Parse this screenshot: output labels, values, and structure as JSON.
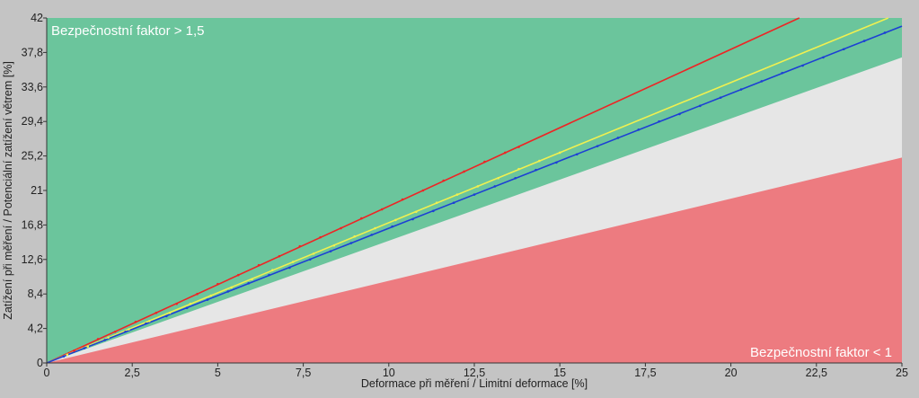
{
  "chart_data": {
    "type": "scatter",
    "title": "",
    "xlabel": "Deformace při měření / Limitní deformace [%]",
    "ylabel": "Zatížení při měření / Potenciální zatížení větrem [%]",
    "xlim": [
      0,
      25
    ],
    "ylim": [
      0,
      42
    ],
    "x_ticks": [
      "0",
      "2,5",
      "5",
      "7,5",
      "10",
      "12,5",
      "15",
      "17,5",
      "20",
      "22,5",
      "25"
    ],
    "y_ticks": [
      "0",
      "4,2",
      "8,4",
      "12,6",
      "16,8",
      "21",
      "25,2",
      "29,4",
      "33,6",
      "37,8",
      "42"
    ],
    "grid": false,
    "annotations": {
      "safe": "Bezpečnostní faktor > 1,5",
      "unsafe": "Bezpečnostní faktor < 1"
    },
    "zones": [
      {
        "id": "safe",
        "color": "#6bc59c",
        "upper_boundary_slope": null,
        "lower_boundary_slope": 1.5
      },
      {
        "id": "middle",
        "color": "#e6e6e6",
        "upper_boundary_slope": 1.5,
        "lower_boundary_slope": 1.0
      },
      {
        "id": "unsafe",
        "color": "#ed7b80",
        "upper_boundary_slope": 1.0,
        "lower_boundary_slope": 0
      }
    ],
    "series": [
      {
        "color": "#ee2424",
        "line": {
          "x": [
            0,
            22
          ],
          "y": [
            0,
            42
          ]
        },
        "points": {
          "x": [
            0.8,
            1.5,
            2.0,
            2.6,
            3.2,
            3.8,
            4.4,
            5.0,
            5.6,
            6.2,
            6.8,
            7.4,
            8.0,
            8.6,
            9.2,
            9.8,
            10.4,
            11.0,
            11.6,
            12.2,
            12.8,
            13.4,
            13.8
          ],
          "y": [
            1.5,
            2.9,
            3.8,
            5.0,
            6.1,
            7.2,
            8.4,
            9.6,
            10.7,
            11.9,
            13.0,
            14.2,
            15.3,
            16.4,
            17.6,
            18.7,
            19.9,
            21.0,
            22.2,
            23.3,
            24.5,
            25.6,
            26.3
          ]
        }
      },
      {
        "color": "#f0f050",
        "line": {
          "x": [
            0,
            24.6
          ],
          "y": [
            0,
            42
          ]
        },
        "points": {
          "x": [
            0.6,
            1.2,
            1.8,
            2.4,
            3.0,
            3.6,
            4.2,
            4.8,
            5.4,
            6.0,
            6.6,
            7.2,
            7.8,
            8.4,
            9.0,
            9.6,
            10.2,
            10.8,
            11.4,
            12.0,
            12.6,
            13.2,
            13.8,
            14.4,
            15.0
          ],
          "y": [
            1.0,
            2.0,
            3.1,
            4.1,
            5.1,
            6.1,
            7.2,
            8.2,
            9.2,
            10.2,
            11.3,
            12.3,
            13.3,
            14.3,
            15.4,
            16.4,
            17.4,
            18.4,
            19.5,
            20.5,
            21.5,
            22.5,
            23.6,
            24.6,
            25.6
          ]
        }
      },
      {
        "color": "#1c3fd4",
        "line": {
          "x": [
            0,
            25
          ],
          "y": [
            0,
            41
          ]
        },
        "points": {
          "x": [
            0.5,
            1.1,
            1.7,
            2.3,
            2.9,
            3.5,
            4.1,
            4.7,
            5.3,
            5.9,
            6.5,
            7.1,
            7.7,
            8.3,
            8.9,
            9.5,
            10.1,
            10.7,
            11.3,
            11.9,
            12.5,
            13.1,
            13.7,
            14.3,
            14.9,
            15.5,
            16.1,
            16.7,
            17.3,
            17.9,
            18.5,
            19.1,
            19.7,
            20.3,
            20.9,
            21.5,
            22.1,
            22.7,
            23.3,
            23.9,
            24.5
          ],
          "y": [
            0.8,
            1.8,
            2.8,
            3.8,
            4.8,
            5.7,
            6.7,
            7.7,
            8.7,
            9.7,
            10.7,
            11.6,
            12.6,
            13.6,
            14.6,
            15.6,
            16.6,
            17.5,
            18.5,
            19.5,
            20.5,
            21.5,
            22.5,
            23.5,
            24.4,
            25.4,
            26.4,
            27.4,
            28.4,
            29.4,
            30.3,
            31.3,
            32.3,
            33.3,
            34.3,
            35.3,
            36.2,
            37.2,
            38.2,
            39.2,
            40.2
          ]
        }
      }
    ]
  }
}
